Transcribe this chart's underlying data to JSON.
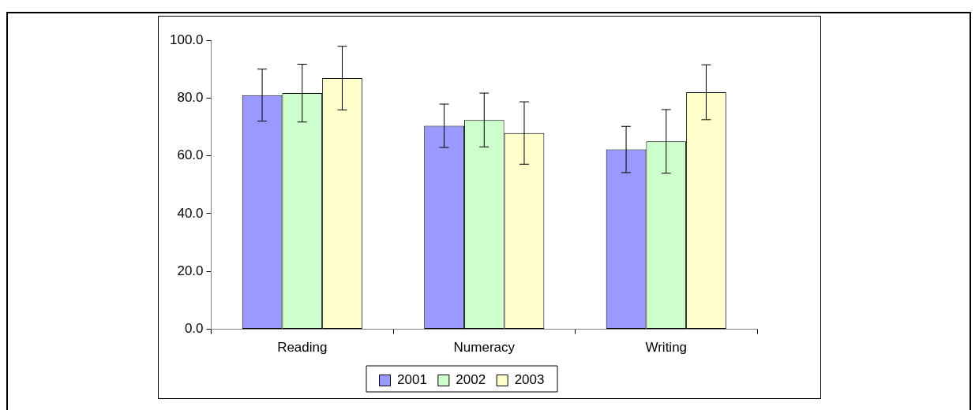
{
  "chart_data": {
    "type": "bar",
    "categories": [
      "Reading",
      "Numeracy",
      "Writing"
    ],
    "series": [
      {
        "name": "2001",
        "color": "#9999ff",
        "values": [
          81.0,
          70.4,
          62.2
        ],
        "errors": [
          9,
          7.5,
          8
        ]
      },
      {
        "name": "2002",
        "color": "#ccffcc",
        "values": [
          81.7,
          72.4,
          65.0
        ],
        "errors": [
          10,
          9.3,
          11
        ]
      },
      {
        "name": "2003",
        "color": "#ffffcc",
        "values": [
          86.9,
          67.9,
          82.0
        ],
        "errors": [
          11,
          10.8,
          9.5
        ]
      }
    ],
    "ylim": [
      0,
      100
    ],
    "yticks": [
      {
        "value": 0,
        "label": "0.0"
      },
      {
        "value": 20,
        "label": "20.0"
      },
      {
        "value": 40,
        "label": "40.0"
      },
      {
        "value": 60,
        "label": "60.0"
      },
      {
        "value": 80,
        "label": "80.0"
      },
      {
        "value": 100,
        "label": "100.0"
      }
    ],
    "grid": false,
    "legend": "bottom"
  }
}
